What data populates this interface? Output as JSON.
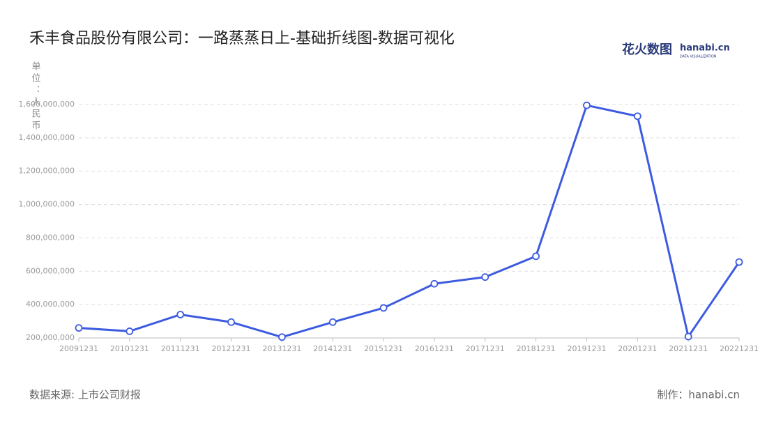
{
  "chart_data": {
    "type": "line",
    "title": "禾丰食品股份有限公司：一路蒸蒸日上-基础折线图-数据可视化",
    "y_label": "单位：人民币",
    "logo": "花火数图",
    "logo_sub": "hanabi.cn",
    "logo_tagline": "DATA VISUALIZATION",
    "source": "数据来源: 上市公司财报",
    "credit": "制作：hanabi.cn",
    "categories": [
      "20091231",
      "20101231",
      "20111231",
      "20121231",
      "20131231",
      "20141231",
      "20151231",
      "20161231",
      "20171231",
      "20181231",
      "20191231",
      "20201231",
      "20211231",
      "20221231"
    ],
    "series": [
      {
        "color": "#3d5be0",
        "values": [
          260000000,
          240000000,
          340000000,
          295000000,
          205000000,
          295000000,
          380000000,
          525000000,
          565000000,
          690000000,
          1595000000,
          1530000000,
          208000000,
          655000000
        ]
      }
    ],
    "ylim": [
      200000000,
      1600000000
    ],
    "yticks": [
      {
        "value": 200000000,
        "label": "200,000,000"
      },
      {
        "value": 400000000,
        "label": "400,000,000"
      },
      {
        "value": 600000000,
        "label": "600,000,000"
      },
      {
        "value": 800000000,
        "label": "800,000,000"
      },
      {
        "value": 1000000000,
        "label": "1,000,000,000"
      },
      {
        "value": 1200000000,
        "label": "1,200,000,000"
      },
      {
        "value": 1400000000,
        "label": "1,400,000,000"
      },
      {
        "value": 1600000000,
        "label": "1,600,000,000"
      }
    ],
    "grid": true
  }
}
